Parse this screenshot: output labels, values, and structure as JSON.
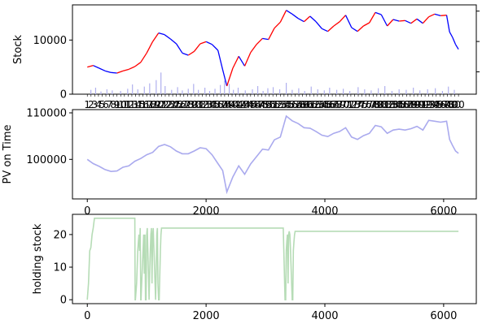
{
  "chart_data": [
    {
      "type": "line",
      "panel": "stock",
      "ylabel": "Stock",
      "xlim": [
        -250,
        6550
      ],
      "ylim": [
        0,
        16500
      ],
      "yticks": [
        0,
        10000
      ],
      "ytick_labels": [
        "0",
        "10000"
      ],
      "secondary_yaxis_ticks": 3,
      "series": [
        {
          "style": "price-line",
          "color_up": "#ff0000",
          "color_down": "#0000ff",
          "x": [
            0,
            100,
            200,
            300,
            400,
            500,
            600,
            700,
            800,
            900,
            1000,
            1100,
            1200,
            1300,
            1400,
            1500,
            1600,
            1700,
            1800,
            1900,
            2000,
            2100,
            2200,
            2280,
            2350,
            2450,
            2550,
            2650,
            2750,
            2850,
            2950,
            3050,
            3150,
            3250,
            3350,
            3450,
            3550,
            3650,
            3750,
            3850,
            3950,
            4050,
            4150,
            4250,
            4350,
            4450,
            4550,
            4650,
            4750,
            4850,
            4950,
            5050,
            5150,
            5250,
            5350,
            5450,
            5550,
            5650,
            5750,
            5850,
            5950,
            6050,
            6100,
            6150,
            6200,
            6250
          ],
          "values": [
            5000,
            5300,
            4800,
            4300,
            4000,
            3900,
            4300,
            4600,
            5100,
            5900,
            7600,
            9700,
            11300,
            11000,
            10200,
            9300,
            7600,
            7200,
            7900,
            9300,
            9700,
            9200,
            8100,
            4500,
            1500,
            4800,
            7000,
            5200,
            7700,
            9200,
            10300,
            10100,
            12200,
            13300,
            15500,
            14800,
            14000,
            13400,
            14400,
            13400,
            12100,
            11600,
            12600,
            13400,
            14600,
            12300,
            11600,
            12600,
            13200,
            15100,
            14700,
            12600,
            13800,
            13500,
            13600,
            13100,
            13900,
            13100,
            14300,
            14800,
            14500,
            14600,
            11500,
            10500,
            9200,
            8300
          ]
        },
        {
          "style": "volume-bars",
          "color": "#b0b0ee",
          "x": [
            60,
            140,
            230,
            330,
            420,
            560,
            680,
            760,
            850,
            960,
            1050,
            1160,
            1240,
            1310,
            1420,
            1520,
            1600,
            1700,
            1790,
            1870,
            1980,
            2060,
            2150,
            2240,
            2310,
            2390,
            2460,
            2540,
            2660,
            2780,
            2870,
            2960,
            3040,
            3130,
            3240,
            3350,
            3450,
            3560,
            3660,
            3770,
            3880,
            3990,
            4080,
            4200,
            4310,
            4420,
            4560,
            4670,
            4780,
            4900,
            5010,
            5130,
            5250,
            5370,
            5490,
            5600,
            5730,
            5860,
            5980,
            6080,
            6180
          ],
          "values": [
            800,
            1200,
            500,
            900,
            700,
            600,
            1000,
            1800,
            900,
            1400,
            2000,
            2600,
            4000,
            1500,
            800,
            1300,
            700,
            1000,
            1900,
            800,
            1200,
            600,
            1000,
            1700,
            2500,
            1900,
            800,
            1200,
            700,
            900,
            1500,
            600,
            1100,
            1300,
            900,
            2100,
            800,
            1100,
            600,
            1400,
            900,
            700,
            1200,
            800,
            1000,
            600,
            1300,
            900,
            700,
            1100,
            1500,
            600,
            900,
            800,
            1200,
            700,
            900,
            1100,
            600,
            1400,
            800
          ]
        }
      ],
      "xticks_overlapping": [
        "1",
        "2",
        "3",
        "4",
        "5",
        "6",
        "7",
        "8",
        "9",
        "10",
        "11",
        "12",
        "13",
        "14",
        "15",
        "16",
        "17",
        "18",
        "19",
        "20",
        "21",
        "22",
        "23",
        "24",
        "25",
        "26",
        "27",
        "28",
        "29",
        "30",
        "31",
        "32",
        "33",
        "34",
        "35",
        "36",
        "37",
        "38",
        "39",
        "40",
        "41",
        "42",
        "43",
        "44",
        "45",
        "46",
        "47",
        "48",
        "49",
        "50",
        "51",
        "52",
        "53",
        "54",
        "55",
        "56",
        "57",
        "58",
        "59",
        "60",
        "61",
        "62",
        "63",
        "64",
        "65",
        "66",
        "67",
        "68",
        "69",
        "70",
        "71",
        "72",
        "73",
        "74",
        "75",
        "76",
        "77",
        "78",
        "79",
        "80",
        "81",
        "82",
        "83",
        "84",
        "85",
        "86",
        "87",
        "88",
        "89",
        "90",
        "91",
        "92",
        "93",
        "94",
        "95",
        "96",
        "97",
        "98",
        "99",
        "00",
        "00"
      ]
    },
    {
      "type": "line",
      "panel": "pv",
      "ylabel": "PV on Time",
      "xlim": [
        -250,
        6550
      ],
      "ylim": [
        91500,
        110700
      ],
      "xticks": [
        0,
        2000,
        4000,
        6000
      ],
      "yticks": [
        100000,
        110000
      ],
      "ytick_labels": [
        "100000",
        "110000"
      ],
      "series": [
        {
          "color": "#aaaaee",
          "x": [
            0,
            100,
            200,
            300,
            400,
            500,
            600,
            700,
            800,
            900,
            1000,
            1100,
            1200,
            1300,
            1400,
            1500,
            1600,
            1700,
            1800,
            1900,
            2000,
            2100,
            2200,
            2280,
            2350,
            2450,
            2550,
            2650,
            2750,
            2850,
            2950,
            3050,
            3150,
            3250,
            3350,
            3450,
            3550,
            3650,
            3750,
            3850,
            3950,
            4050,
            4150,
            4250,
            4350,
            4450,
            4550,
            4650,
            4750,
            4850,
            4950,
            5050,
            5150,
            5250,
            5350,
            5450,
            5550,
            5650,
            5750,
            5850,
            5950,
            6050,
            6100,
            6150,
            6200,
            6250
          ],
          "values": [
            100000,
            99100,
            98500,
            97800,
            97400,
            97500,
            98300,
            98600,
            99600,
            100200,
            101000,
            101500,
            102800,
            103200,
            102700,
            101800,
            101200,
            101200,
            101800,
            102500,
            102300,
            101000,
            99100,
            97600,
            93000,
            96200,
            98600,
            96800,
            99000,
            100600,
            102200,
            102000,
            104200,
            104800,
            109300,
            108300,
            107700,
            106800,
            106700,
            106000,
            105200,
            104900,
            105600,
            106000,
            106800,
            104800,
            104300,
            105100,
            105600,
            107300,
            107000,
            105600,
            106300,
            106500,
            106300,
            106600,
            107100,
            106300,
            108400,
            108200,
            108000,
            108200,
            104300,
            103000,
            101800,
            101300
          ]
        }
      ]
    },
    {
      "type": "line",
      "panel": "holding",
      "ylabel": "holding stock",
      "xlim": [
        -250,
        6550
      ],
      "ylim": [
        -1.2,
        26.2
      ],
      "xticks": [
        0,
        2000,
        4000,
        6000
      ],
      "yticks": [
        0,
        10,
        20
      ],
      "ytick_labels": [
        "0",
        "10",
        "20"
      ],
      "series": [
        {
          "color": "#b6dcb6",
          "x": [
            0,
            20,
            40,
            60,
            80,
            100,
            120,
            150,
            800,
            805,
            810,
            830,
            850,
            860,
            870,
            880,
            890,
            900,
            905,
            950,
            960,
            970,
            980,
            990,
            1000,
            1010,
            1040,
            1050,
            1060,
            1070,
            1080,
            1090,
            1100,
            1110,
            1150,
            1160,
            1170,
            1180,
            1190,
            1200,
            1210,
            1230,
            1240,
            1250,
            1260,
            1270,
            1280,
            1290,
            1300,
            1350,
            3300,
            3330,
            3340,
            3350,
            3360,
            3370,
            3380,
            3390,
            3400,
            3410,
            3420,
            3450,
            3460,
            3470,
            3480,
            3490,
            3500,
            3550,
            6250
          ],
          "values": [
            0,
            5,
            15,
            16,
            20,
            22,
            25,
            25,
            25,
            0,
            0,
            5,
            15,
            18,
            20,
            15,
            22,
            0,
            0,
            20,
            8,
            20,
            0,
            0,
            20,
            22,
            0,
            8,
            15,
            20,
            22,
            5,
            20,
            22,
            0,
            8,
            20,
            22,
            5,
            0,
            0,
            15,
            20,
            22,
            22,
            22,
            22,
            22,
            22,
            22,
            22,
            0,
            0,
            15,
            18,
            20,
            5,
            20,
            21,
            20,
            16,
            0,
            0,
            15,
            18,
            20,
            21,
            21,
            21
          ]
        }
      ]
    }
  ]
}
